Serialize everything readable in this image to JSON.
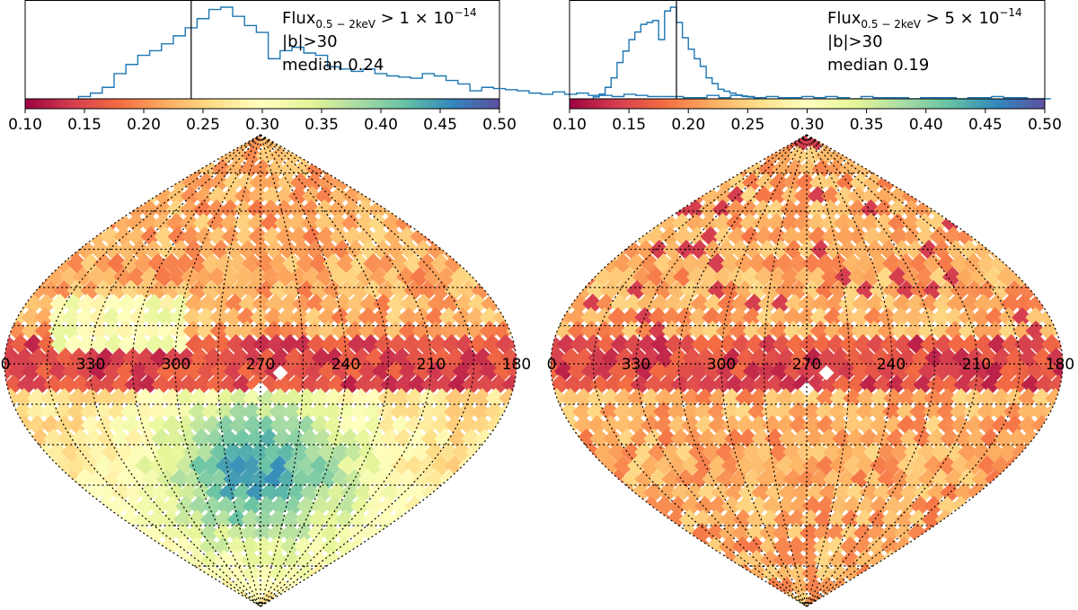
{
  "figure": {
    "colormap": "Spectral"
  },
  "chart_data": [
    {
      "type": "histogram+sky-map",
      "annotation": {
        "flux_prefix": "Flux",
        "flux_subscript": "0.5 − 2keV",
        "flux_rel": " > 1 × 10",
        "flux_exp": "−14",
        "lat_cut": "|b|>30",
        "median_label": "median 0.24"
      },
      "median": 0.24,
      "xlim": [
        0.1,
        0.5
      ],
      "ticks": [
        "0.10",
        "0.15",
        "0.20",
        "0.25",
        "0.30",
        "0.35",
        "0.40",
        "0.45",
        "0.50"
      ],
      "hist_bin_width": 0.01,
      "hist_left_edge": 0.145,
      "hist_counts": [
        2,
        5,
        10,
        22,
        30,
        38,
        42,
        48,
        55,
        62,
        70,
        78,
        80,
        72,
        64,
        58,
        35,
        42,
        45,
        40,
        38,
        28,
        26,
        24,
        26,
        22,
        20,
        19,
        18,
        22,
        20,
        16,
        13,
        7,
        10,
        9,
        8,
        7,
        5,
        4,
        6,
        4,
        5,
        3,
        3,
        2,
        4,
        3,
        2,
        2,
        2,
        1,
        1,
        3,
        1,
        3,
        2,
        1,
        2,
        1,
        1,
        2,
        1,
        2,
        1,
        0,
        2,
        1,
        1,
        1,
        0,
        1,
        1,
        1,
        0,
        1,
        1,
        2,
        1,
        1,
        0,
        0
      ],
      "map": {
        "lon_labels": [
          "0",
          "330",
          "300",
          "270",
          "240",
          "210",
          "180"
        ],
        "pattern": "hot"
      }
    },
    {
      "type": "histogram+sky-map",
      "annotation": {
        "flux_prefix": "Flux",
        "flux_subscript": "0.5 − 2keV",
        "flux_rel": " > 5 × 10",
        "flux_exp": "−14",
        "lat_cut": "|b|>30",
        "median_label": "median 0.19"
      },
      "median": 0.19,
      "xlim": [
        0.1,
        0.5
      ],
      "ticks": [
        "0.10",
        "0.15",
        "0.20",
        "0.25",
        "0.30",
        "0.35",
        "0.40",
        "0.45",
        "0.50"
      ],
      "hist_bin_width": 0.005,
      "hist_left_edge": 0.12,
      "hist_counts": [
        2,
        5,
        12,
        22,
        38,
        50,
        62,
        70,
        78,
        80,
        82,
        62,
        92,
        96,
        80,
        64,
        52,
        42,
        34,
        22,
        16,
        10,
        8,
        6,
        4,
        3,
        2,
        1
      ],
      "map": {
        "lon_labels": [
          "0",
          "330",
          "300",
          "270",
          "240",
          "210",
          "180"
        ],
        "pattern": "calm"
      }
    }
  ]
}
